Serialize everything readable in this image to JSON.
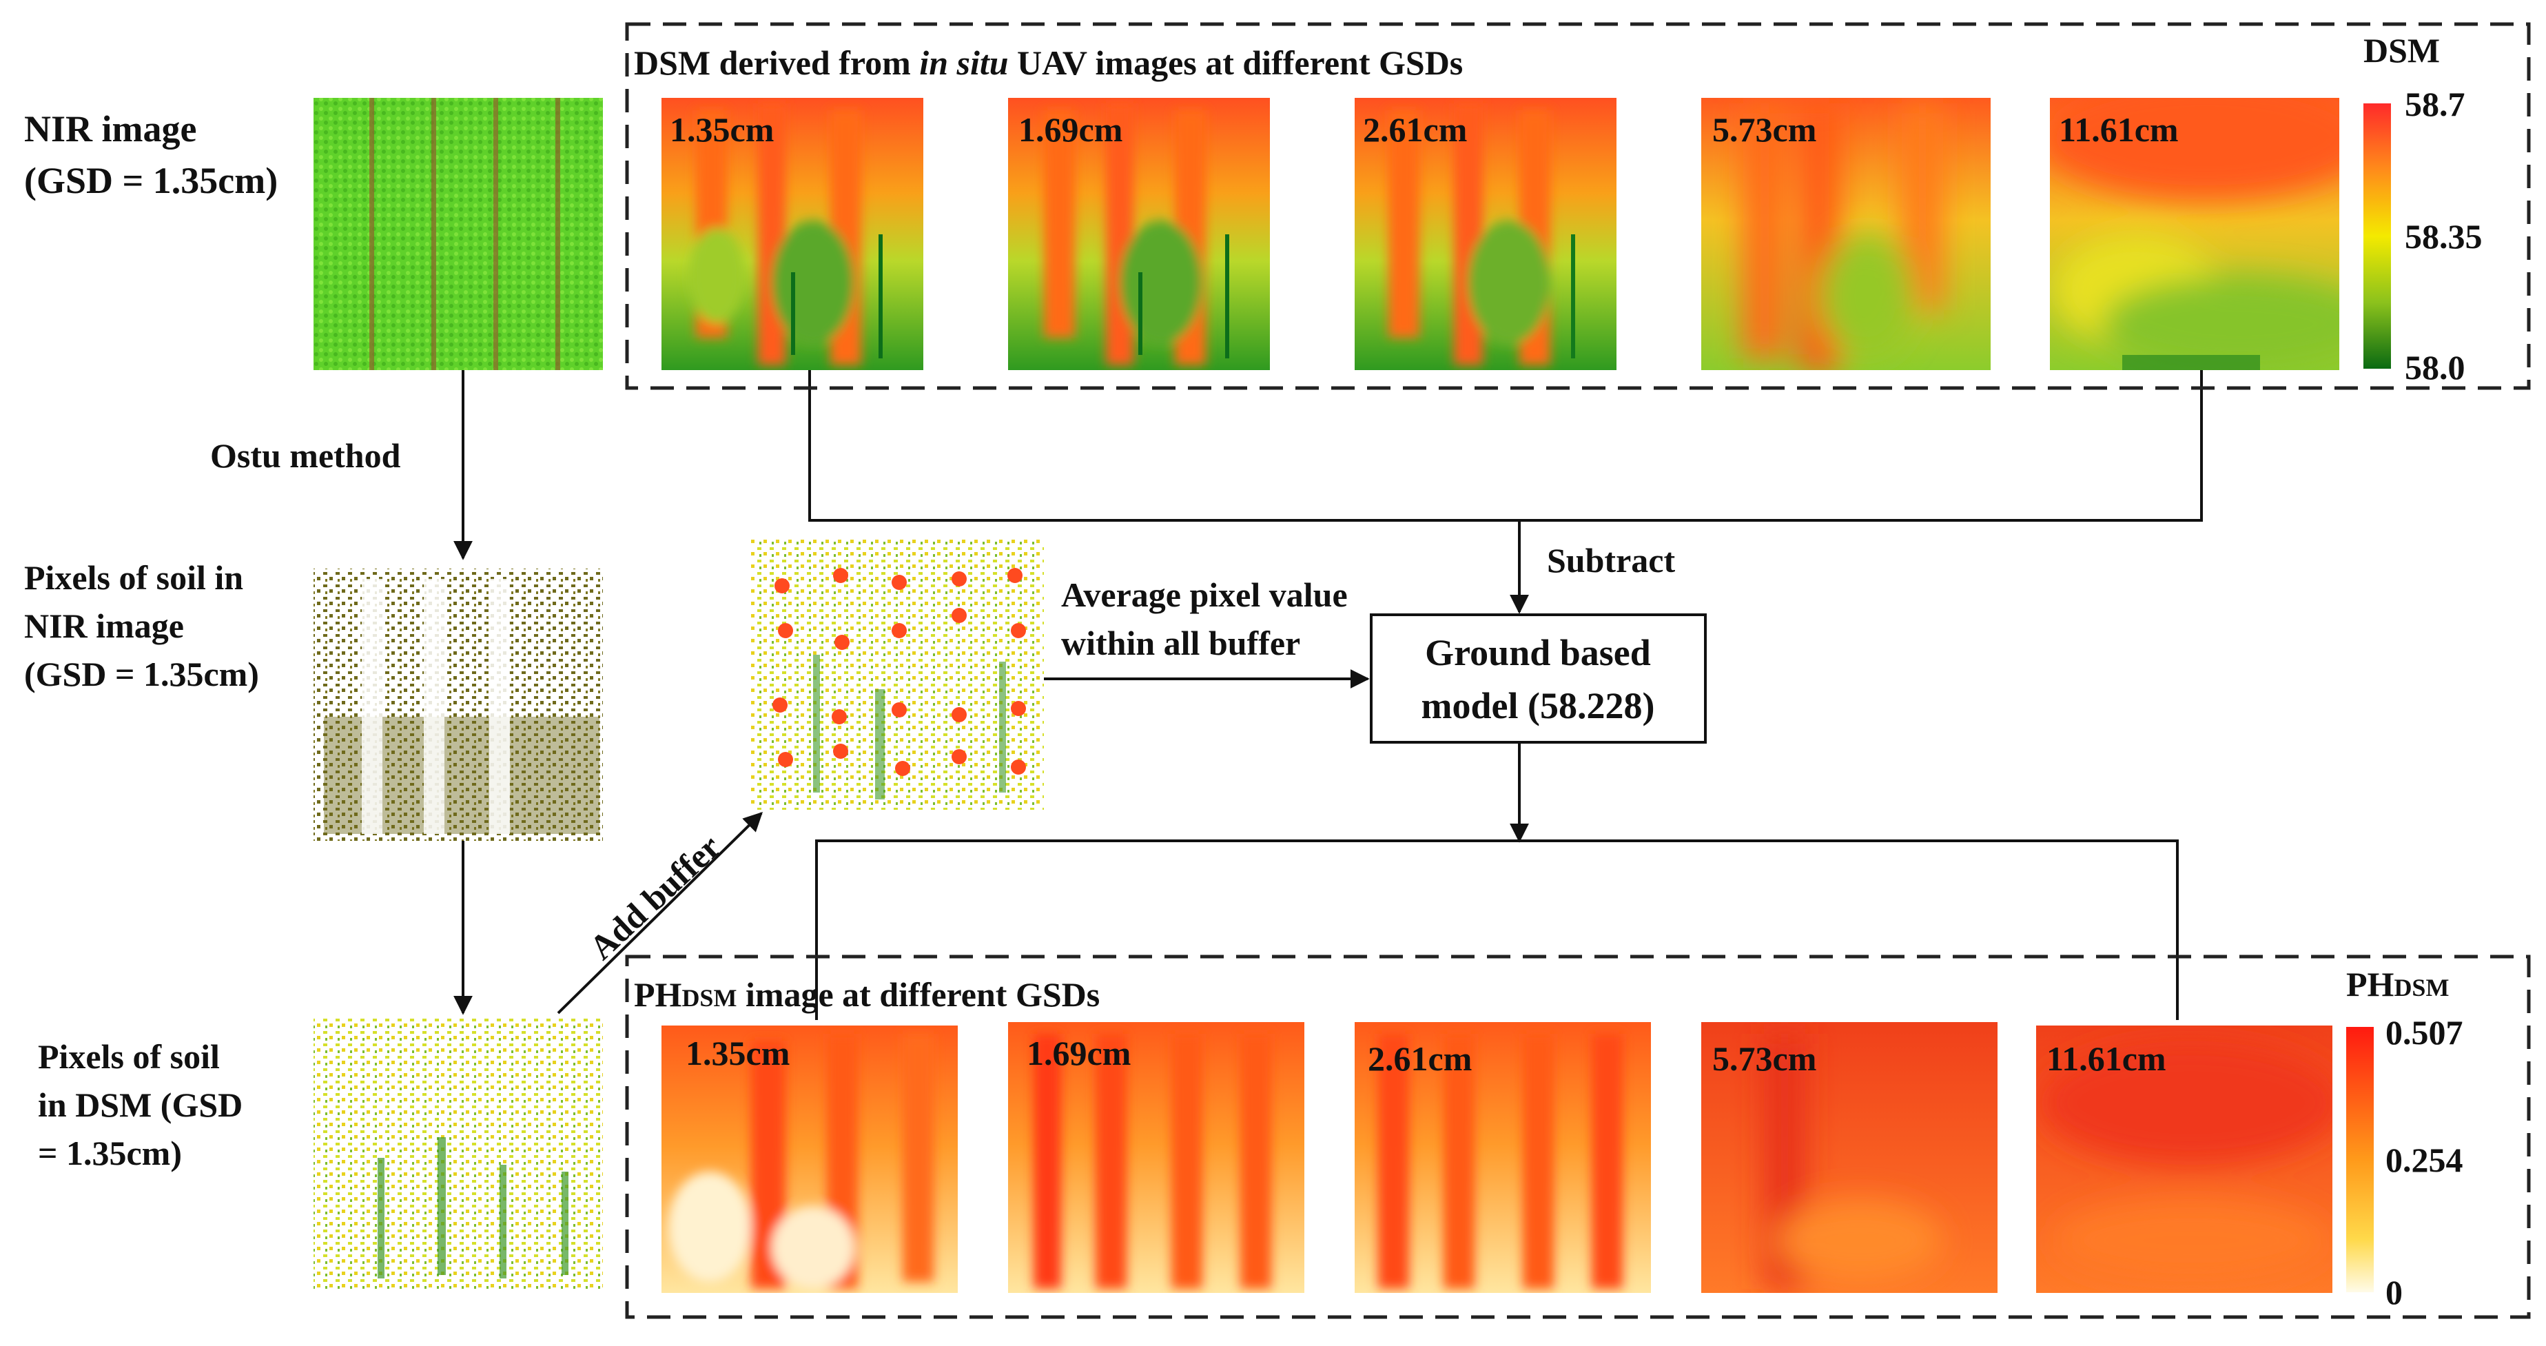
{
  "labels": {
    "nir_image": [
      "NIR image",
      "(GSD = 1.35cm)"
    ],
    "ostu_method": "Ostu method",
    "soil_nir": [
      "Pixels of soil in",
      "NIR image",
      "(GSD = 1.35cm)"
    ],
    "soil_dsm": [
      "Pixels of soil",
      "in DSM (GSD",
      "= 1.35cm)"
    ],
    "add_buffer": "Add buffer",
    "average": [
      "Average pixel value",
      "within all buffer"
    ],
    "subtract": "Subtract",
    "ground_model": [
      "Ground based",
      "model (58.228)"
    ]
  },
  "dsm_panel": {
    "title_pre": "DSM derived from ",
    "title_italic": "in situ",
    "title_post": " UAV images at different GSDs",
    "gsds": [
      "1.35cm",
      "1.69cm",
      "2.61cm",
      "5.73cm",
      "11.61cm"
    ],
    "colorbar": {
      "title": "DSM",
      "max": "58.7",
      "mid": "58.35",
      "min": "58.0"
    }
  },
  "ph_panel": {
    "title_main": "PH",
    "title_sub": "DSM",
    "title_post": " image at different GSDs",
    "gsds": [
      "1.35cm",
      "1.69cm",
      "2.61cm",
      "5.73cm",
      "11.61cm"
    ],
    "colorbar": {
      "title_main": "PH",
      "title_sub": "DSM",
      "max": "0.507",
      "mid": "0.254",
      "min": "0"
    }
  },
  "colors": {
    "nir_green": "#5fd12a",
    "soil_olive": "#6f6a1c",
    "dsm_high": "#ff3a1c",
    "dsm_mid": "#f2e400",
    "dsm_low": "#0b6d14",
    "ph_high": "#ff2a10",
    "ph_low": "#fffbe8",
    "buffer_dot": "#ff4a1f"
  }
}
